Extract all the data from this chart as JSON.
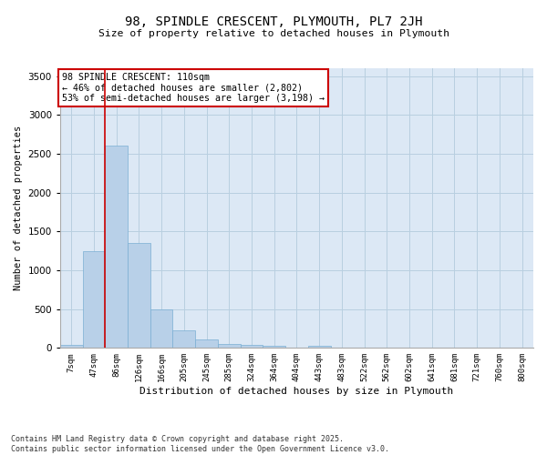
{
  "title": "98, SPINDLE CRESCENT, PLYMOUTH, PL7 2JH",
  "subtitle": "Size of property relative to detached houses in Plymouth",
  "xlabel": "Distribution of detached houses by size in Plymouth",
  "ylabel": "Number of detached properties",
  "bar_color": "#b8d0e8",
  "bar_edge_color": "#7aafd4",
  "background_color": "#dce8f5",
  "grid_color": "#b8cfe0",
  "categories": [
    "7sqm",
    "47sqm",
    "86sqm",
    "126sqm",
    "166sqm",
    "205sqm",
    "245sqm",
    "285sqm",
    "324sqm",
    "364sqm",
    "404sqm",
    "443sqm",
    "483sqm",
    "522sqm",
    "562sqm",
    "602sqm",
    "641sqm",
    "681sqm",
    "721sqm",
    "760sqm",
    "800sqm"
  ],
  "values": [
    40,
    1250,
    2600,
    1350,
    500,
    230,
    110,
    50,
    40,
    30,
    0,
    30,
    0,
    0,
    0,
    0,
    0,
    0,
    0,
    0,
    0
  ],
  "ylim": [
    0,
    3600
  ],
  "yticks": [
    0,
    500,
    1000,
    1500,
    2000,
    2500,
    3000,
    3500
  ],
  "vline_color": "#cc0000",
  "vline_index": 2,
  "annotation_text": "98 SPINDLE CRESCENT: 110sqm\n← 46% of detached houses are smaller (2,802)\n53% of semi-detached houses are larger (3,198) →",
  "annotation_box_color": "#ffffff",
  "annotation_box_edge": "#cc0000",
  "footer_line1": "Contains HM Land Registry data © Crown copyright and database right 2025.",
  "footer_line2": "Contains public sector information licensed under the Open Government Licence v3.0."
}
